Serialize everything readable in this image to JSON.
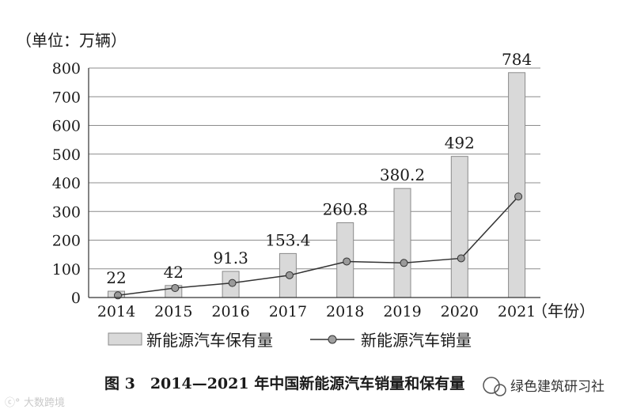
{
  "chart_data": {
    "type": "bar",
    "unit_label": "（单位：万辆）",
    "x_unit_label": "（年份）",
    "categories": [
      "2014",
      "2015",
      "2016",
      "2017",
      "2018",
      "2019",
      "2020",
      "2021"
    ],
    "ylim": [
      0,
      800
    ],
    "yticks": [
      0,
      100,
      200,
      300,
      400,
      500,
      600,
      700,
      800
    ],
    "grid": true,
    "legend_position": "bottom",
    "series": [
      {
        "name": "新能源汽车保有量",
        "kind": "bar",
        "color": "#d9d9d9",
        "values": [
          22,
          42,
          91.3,
          153.4,
          260.8,
          380.2,
          492,
          784
        ],
        "labels": [
          "22",
          "42",
          "91.3",
          "153.4",
          "260.8",
          "380.2",
          "492",
          "784"
        ]
      },
      {
        "name": "新能源汽车销量",
        "kind": "line",
        "color": "#333333",
        "values": [
          7.5,
          33.1,
          50.7,
          77.7,
          125.6,
          120.6,
          136.7,
          352.1
        ]
      }
    ]
  },
  "caption": "图 3　2014—2021 年中国新能源汽车销量和保有量",
  "watermark_right": "绿色建筑研习社",
  "watermark_left": "大数跨境"
}
